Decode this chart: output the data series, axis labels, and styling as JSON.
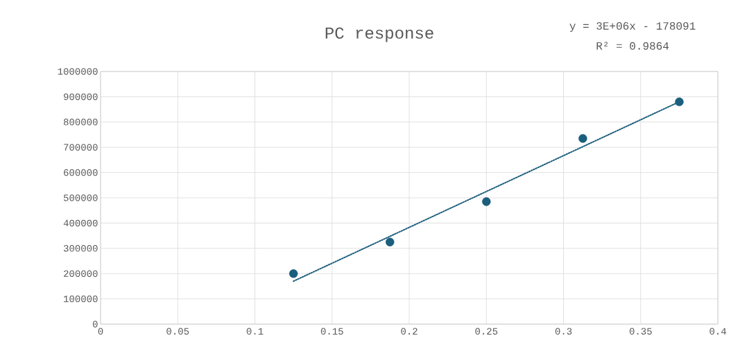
{
  "chart_data": {
    "type": "scatter",
    "title": "PC response",
    "annotations": [
      "y = 3E+06x - 178091",
      "R² = 0.9864"
    ],
    "series": [
      {
        "type": "scatter",
        "color": "#1b5e7d",
        "marker": "circle",
        "x": [
          0.125,
          0.1875,
          0.25,
          0.3125,
          0.375
        ],
        "values": [
          200000,
          325000,
          485000,
          735000,
          880000
        ]
      },
      {
        "type": "line",
        "color": "#1b5e7d",
        "marker": "none",
        "line_style": "dotted",
        "x": [
          0.125,
          0.375
        ],
        "values": [
          170000,
          880000
        ]
      }
    ],
    "xlim": [
      0,
      0.4
    ],
    "xticks": [
      0,
      0.05,
      0.1,
      0.15,
      0.2,
      0.25,
      0.3,
      0.35,
      0.4
    ],
    "ylim": [
      0,
      1000000
    ],
    "yticks": [
      0,
      100000,
      200000,
      300000,
      400000,
      500000,
      600000,
      700000,
      800000,
      900000,
      1000000
    ],
    "grid": true
  }
}
